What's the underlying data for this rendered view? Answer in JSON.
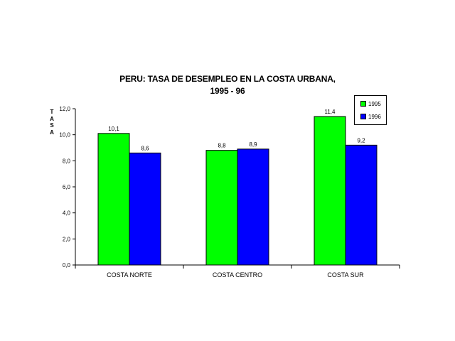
{
  "chart_data": {
    "type": "bar",
    "title_line1": "PERU: TASA DE  DESEMPLEO EN LA COSTA URBANA,",
    "title_line2": "1995 - 96",
    "ylabel": "TASA",
    "categories": [
      "COSTA NORTE",
      "COSTA CENTRO",
      "COSTA SUR"
    ],
    "series": [
      {
        "name": "1995",
        "color": "#00ff00",
        "values": [
          10.1,
          8.8,
          11.4
        ],
        "labels": [
          "10,1",
          "8,8",
          "11,4"
        ]
      },
      {
        "name": "1996",
        "color": "#0000ff",
        "values": [
          8.6,
          8.9,
          9.2
        ],
        "labels": [
          "8,6",
          "8,9",
          "9,2"
        ]
      }
    ],
    "ylim": [
      0,
      12
    ],
    "yticks": [
      0,
      2,
      4,
      6,
      8,
      10,
      12
    ],
    "ytick_labels": [
      "0,0",
      "2,0",
      "4,0",
      "6,0",
      "8,0",
      "10,0",
      "12,0"
    ],
    "grid": false,
    "legend_position": "top-right"
  }
}
